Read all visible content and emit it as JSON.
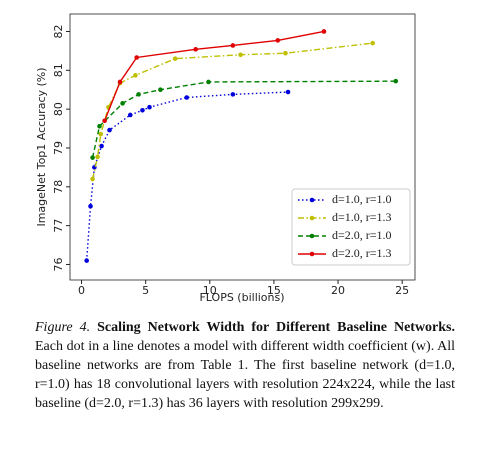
{
  "chart_data": {
    "type": "line",
    "x_label": "FLOPS (billions)",
    "y_label": "ImageNet Top1 Accuracy (%)",
    "xlim": [
      -0.9,
      26
    ],
    "ylim": [
      75.6,
      82.45
    ],
    "xticks": [
      0,
      5,
      10,
      15,
      20,
      25
    ],
    "yticks": [
      76,
      77,
      78,
      79,
      80,
      81,
      82
    ],
    "legend": "lower right",
    "series": [
      {
        "name": "d=1.0, r=1.0",
        "color": "#0000dd",
        "linestyle": "dotted",
        "x": [
          0.4,
          0.7,
          1.0,
          1.56,
          2.18,
          3.8,
          4.75,
          5.3,
          8.2,
          11.8,
          16.1
        ],
        "values": [
          76.1,
          77.5,
          78.5,
          79.05,
          79.46,
          79.85,
          79.97,
          80.05,
          80.3,
          80.38,
          80.44
        ]
      },
      {
        "name": "d=1.0, r=1.3",
        "color": "#bfbf00",
        "linestyle": "dashdot",
        "x": [
          0.86,
          1.25,
          1.5,
          2.1,
          3.0,
          4.2,
          7.3,
          12.4,
          15.9,
          22.7
        ],
        "values": [
          78.2,
          78.77,
          79.36,
          80.05,
          80.67,
          80.87,
          81.3,
          81.4,
          81.44,
          81.7
        ]
      },
      {
        "name": "d=2.0, r=1.0",
        "color": "#008000",
        "linestyle": "dashed",
        "x": [
          0.86,
          1.4,
          3.2,
          4.45,
          6.15,
          9.9,
          24.5
        ],
        "values": [
          78.75,
          79.56,
          80.15,
          80.38,
          80.5,
          80.7,
          80.72
        ]
      },
      {
        "name": "d=2.0, r=1.3",
        "color": "#e00000",
        "linestyle": "solid",
        "x": [
          1.8,
          3.0,
          4.3,
          8.9,
          11.8,
          15.3,
          18.9
        ],
        "values": [
          79.7,
          80.7,
          81.33,
          81.54,
          81.64,
          81.77,
          82.0
        ]
      }
    ]
  },
  "caption": {
    "label": "Figure 4.",
    "title": "Scaling Network Width for Different Baseline Networks.",
    "text": "Each dot in a line denotes a model with different width coefficient (w). All baseline networks are from Table 1. The first baseline network (d=1.0, r=1.0) has 18 convolutional layers with resolution 224x224, while the last baseline (d=2.0, r=1.3) has 36 layers with resolution 299x299."
  }
}
